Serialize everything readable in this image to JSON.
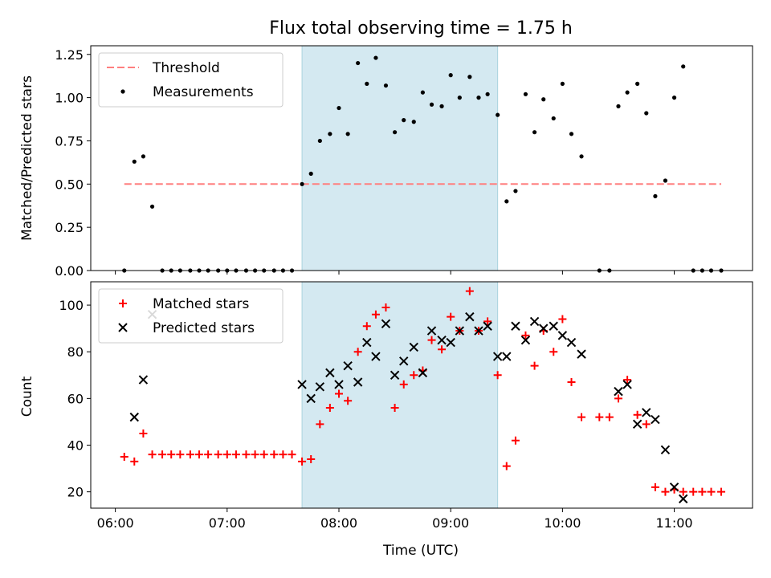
{
  "chart_data": [
    {
      "type": "scatter",
      "title": "Flux total observing time = 1.75 h",
      "xlabel": "",
      "ylabel": "Matched/Predicted stars",
      "ylim": [
        0,
        1.3
      ],
      "yticks": [
        "0.00",
        "0.25",
        "0.50",
        "0.75",
        "1.00",
        "1.25"
      ],
      "ytick_values": [
        0,
        0.25,
        0.5,
        0.75,
        1.0,
        1.25
      ],
      "x_unit": "hours UTC",
      "xlim": [
        5.78,
        11.7
      ],
      "shaded_interval": [
        7.67,
        9.42
      ],
      "shade_color": "#d4e9f1",
      "threshold": {
        "name": "Threshold",
        "value": 0.5,
        "x_range": [
          6.08,
          11.42
        ],
        "color": "#ff7f7f"
      },
      "legend": [
        "Threshold",
        "Measurements"
      ],
      "legend_location": "upper left",
      "series": [
        {
          "name": "Measurements",
          "color": "#000000",
          "points": [
            [
              6.08,
              0.0
            ],
            [
              6.17,
              0.63
            ],
            [
              6.25,
              0.66
            ],
            [
              6.33,
              0.37
            ],
            [
              6.42,
              0.0
            ],
            [
              6.5,
              0.0
            ],
            [
              6.58,
              0.0
            ],
            [
              6.67,
              0.0
            ],
            [
              6.75,
              0.0
            ],
            [
              6.83,
              0.0
            ],
            [
              6.92,
              0.0
            ],
            [
              7.0,
              0.0
            ],
            [
              7.08,
              0.0
            ],
            [
              7.17,
              0.0
            ],
            [
              7.25,
              0.0
            ],
            [
              7.33,
              0.0
            ],
            [
              7.42,
              0.0
            ],
            [
              7.5,
              0.0
            ],
            [
              7.58,
              0.0
            ],
            [
              7.67,
              0.5
            ],
            [
              7.75,
              0.56
            ],
            [
              7.83,
              0.75
            ],
            [
              7.92,
              0.79
            ],
            [
              8.0,
              0.94
            ],
            [
              8.08,
              0.79
            ],
            [
              8.17,
              1.2
            ],
            [
              8.25,
              1.08
            ],
            [
              8.33,
              1.23
            ],
            [
              8.42,
              1.07
            ],
            [
              8.5,
              0.8
            ],
            [
              8.58,
              0.87
            ],
            [
              8.67,
              0.86
            ],
            [
              8.75,
              1.03
            ],
            [
              8.83,
              0.96
            ],
            [
              8.92,
              0.95
            ],
            [
              9.0,
              1.13
            ],
            [
              9.08,
              1.0
            ],
            [
              9.17,
              1.12
            ],
            [
              9.25,
              1.0
            ],
            [
              9.33,
              1.02
            ],
            [
              9.42,
              0.9
            ],
            [
              9.5,
              0.4
            ],
            [
              9.58,
              0.46
            ],
            [
              9.67,
              1.02
            ],
            [
              9.75,
              0.8
            ],
            [
              9.83,
              0.99
            ],
            [
              9.92,
              0.88
            ],
            [
              10.0,
              1.08
            ],
            [
              10.08,
              0.79
            ],
            [
              10.17,
              0.66
            ],
            [
              10.33,
              0.0
            ],
            [
              10.42,
              0.0
            ],
            [
              10.5,
              0.95
            ],
            [
              10.58,
              1.03
            ],
            [
              10.67,
              1.08
            ],
            [
              10.75,
              0.91
            ],
            [
              10.83,
              0.43
            ],
            [
              10.92,
              0.52
            ],
            [
              11.0,
              1.0
            ],
            [
              11.08,
              1.18
            ],
            [
              11.17,
              0.0
            ],
            [
              11.25,
              0.0
            ],
            [
              11.33,
              0.0
            ],
            [
              11.42,
              0.0
            ]
          ]
        }
      ]
    },
    {
      "type": "scatter",
      "title": "",
      "xlabel": "Time (UTC)",
      "ylabel": "Count",
      "ylim": [
        13,
        110
      ],
      "yticks": [
        "20",
        "40",
        "60",
        "80",
        "100"
      ],
      "ytick_values": [
        20,
        40,
        60,
        80,
        100
      ],
      "xticks": [
        "06:00",
        "07:00",
        "08:00",
        "09:00",
        "10:00",
        "11:00"
      ],
      "xtick_values": [
        6,
        7,
        8,
        9,
        10,
        11
      ],
      "x_unit": "hours UTC",
      "xlim": [
        5.78,
        11.7
      ],
      "shaded_interval": [
        7.67,
        9.42
      ],
      "shade_color": "#d4e9f1",
      "legend": [
        "Matched stars",
        "Predicted stars"
      ],
      "legend_location": "upper left",
      "series": [
        {
          "name": "Matched stars",
          "marker": "+",
          "color": "#ff0000",
          "points": [
            [
              6.08,
              35
            ],
            [
              6.17,
              33
            ],
            [
              6.25,
              45
            ],
            [
              6.33,
              36
            ],
            [
              6.42,
              36
            ],
            [
              6.5,
              36
            ],
            [
              6.58,
              36
            ],
            [
              6.67,
              36
            ],
            [
              6.75,
              36
            ],
            [
              6.83,
              36
            ],
            [
              6.92,
              36
            ],
            [
              7.0,
              36
            ],
            [
              7.08,
              36
            ],
            [
              7.17,
              36
            ],
            [
              7.25,
              36
            ],
            [
              7.33,
              36
            ],
            [
              7.42,
              36
            ],
            [
              7.5,
              36
            ],
            [
              7.58,
              36
            ],
            [
              7.67,
              33
            ],
            [
              7.75,
              34
            ],
            [
              7.83,
              49
            ],
            [
              7.92,
              56
            ],
            [
              8.0,
              62
            ],
            [
              8.08,
              59
            ],
            [
              8.17,
              80
            ],
            [
              8.25,
              91
            ],
            [
              8.33,
              96
            ],
            [
              8.42,
              99
            ],
            [
              8.5,
              56
            ],
            [
              8.58,
              66
            ],
            [
              8.67,
              70
            ],
            [
              8.75,
              72
            ],
            [
              8.83,
              85
            ],
            [
              8.92,
              81
            ],
            [
              9.0,
              95
            ],
            [
              9.08,
              89
            ],
            [
              9.17,
              106
            ],
            [
              9.25,
              89
            ],
            [
              9.33,
              93
            ],
            [
              9.42,
              70
            ],
            [
              9.5,
              31
            ],
            [
              9.58,
              42
            ],
            [
              9.67,
              87
            ],
            [
              9.75,
              74
            ],
            [
              9.83,
              89
            ],
            [
              9.92,
              80
            ],
            [
              10.0,
              94
            ],
            [
              10.08,
              67
            ],
            [
              10.17,
              52
            ],
            [
              10.33,
              52
            ],
            [
              10.42,
              52
            ],
            [
              10.5,
              60
            ],
            [
              10.58,
              68
            ],
            [
              10.67,
              53
            ],
            [
              10.75,
              49
            ],
            [
              10.83,
              22
            ],
            [
              10.92,
              20
            ],
            [
              11.0,
              21
            ],
            [
              11.08,
              20
            ],
            [
              11.17,
              20
            ],
            [
              11.25,
              20
            ],
            [
              11.33,
              20
            ],
            [
              11.42,
              20
            ]
          ]
        },
        {
          "name": "Predicted stars",
          "marker": "x",
          "color": "#000000",
          "points": [
            [
              6.17,
              52
            ],
            [
              6.25,
              68
            ],
            [
              6.33,
              96
            ],
            [
              7.67,
              66
            ],
            [
              7.75,
              60
            ],
            [
              7.83,
              65
            ],
            [
              7.92,
              71
            ],
            [
              8.0,
              66
            ],
            [
              8.08,
              74
            ],
            [
              8.17,
              67
            ],
            [
              8.25,
              84
            ],
            [
              8.33,
              78
            ],
            [
              8.42,
              92
            ],
            [
              8.5,
              70
            ],
            [
              8.58,
              76
            ],
            [
              8.67,
              82
            ],
            [
              8.75,
              71
            ],
            [
              8.83,
              89
            ],
            [
              8.92,
              85
            ],
            [
              9.0,
              84
            ],
            [
              9.08,
              89
            ],
            [
              9.17,
              95
            ],
            [
              9.25,
              89
            ],
            [
              9.33,
              91
            ],
            [
              9.42,
              78
            ],
            [
              9.5,
              78
            ],
            [
              9.58,
              91
            ],
            [
              9.67,
              85
            ],
            [
              9.75,
              93
            ],
            [
              9.83,
              90
            ],
            [
              9.92,
              91
            ],
            [
              10.0,
              87
            ],
            [
              10.08,
              84
            ],
            [
              10.17,
              79
            ],
            [
              10.5,
              63
            ],
            [
              10.58,
              66
            ],
            [
              10.67,
              49
            ],
            [
              10.75,
              54
            ],
            [
              10.83,
              51
            ],
            [
              10.92,
              38
            ],
            [
              11.0,
              22
            ],
            [
              11.08,
              17
            ]
          ]
        }
      ]
    }
  ]
}
